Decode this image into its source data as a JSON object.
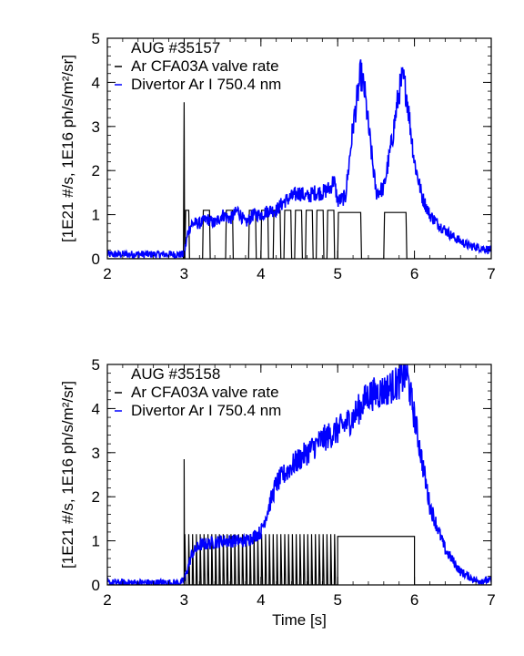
{
  "chart_data": [
    {
      "type": "line",
      "panel": "top",
      "title": "",
      "xlim": [
        2,
        7
      ],
      "ylim": [
        0,
        5
      ],
      "x_ticks": [
        2,
        3,
        4,
        5,
        6,
        7
      ],
      "y_ticks": [
        0,
        1,
        2,
        3,
        4,
        5
      ],
      "ylabel": "[1E21 #/s, 1E16 ph/s/m²/sr]",
      "xlabel": "",
      "legend": {
        "placement": "top-left",
        "header": "AUG #35157",
        "entries": [
          "Ar CFA03A valve rate",
          "Divertor Ar I 750.4 nm"
        ]
      },
      "series": [
        {
          "name": "Ar CFA03A valve rate",
          "color": "#000000",
          "x": [
            2.0,
            2.99,
            3.0,
            3.005,
            3.01,
            3.02,
            3.06,
            3.07,
            3.24,
            3.25,
            3.33,
            3.34,
            3.54,
            3.55,
            3.63,
            3.64,
            3.84,
            3.85,
            3.93,
            3.94,
            4.0,
            4.01,
            4.09,
            4.1,
            4.16,
            4.17,
            4.25,
            4.26,
            4.3,
            4.31,
            4.39,
            4.4,
            4.44,
            4.45,
            4.53,
            4.54,
            4.58,
            4.59,
            4.67,
            4.68,
            4.72,
            4.73,
            4.81,
            4.82,
            4.86,
            4.87,
            4.95,
            4.96,
            5.0,
            5.01,
            5.3,
            5.31,
            5.6,
            5.61,
            5.89,
            5.9,
            7.0
          ],
          "y": [
            0,
            0,
            3.55,
            1.05,
            0,
            1.1,
            1.1,
            0,
            0,
            1.1,
            1.1,
            0,
            0,
            1.1,
            1.1,
            0,
            0,
            1.1,
            1.1,
            0,
            0,
            1.1,
            1.1,
            0,
            0,
            1.1,
            1.1,
            0,
            0,
            1.1,
            1.1,
            0,
            0,
            1.1,
            1.1,
            0,
            0,
            1.1,
            1.1,
            0,
            0,
            1.1,
            1.1,
            0,
            0,
            1.1,
            1.1,
            0,
            0,
            1.05,
            1.05,
            0,
            0,
            1.05,
            1.05,
            0,
            0
          ]
        },
        {
          "name": "Divertor Ar I 750.4 nm",
          "color": "#0000ff",
          "x": [
            2.0,
            2.5,
            2.9,
            3.0,
            3.05,
            3.1,
            3.2,
            3.3,
            3.4,
            3.5,
            3.6,
            3.7,
            3.8,
            3.9,
            4.0,
            4.1,
            4.2,
            4.3,
            4.4,
            4.5,
            4.6,
            4.7,
            4.8,
            4.9,
            4.95,
            5.0,
            5.1,
            5.2,
            5.25,
            5.3,
            5.35,
            5.4,
            5.5,
            5.6,
            5.7,
            5.8,
            5.85,
            5.9,
            6.0,
            6.1,
            6.2,
            6.3,
            6.5,
            6.7,
            7.0
          ],
          "y": [
            0.1,
            0.1,
            0.1,
            0.1,
            0.6,
            0.8,
            0.8,
            0.9,
            0.8,
            1.0,
            0.9,
            1.1,
            0.8,
            1.0,
            1.0,
            1.1,
            1.1,
            1.3,
            1.4,
            1.5,
            1.4,
            1.5,
            1.5,
            1.6,
            1.8,
            1.3,
            1.4,
            3.0,
            3.6,
            4.2,
            3.8,
            3.0,
            1.5,
            1.6,
            2.6,
            3.8,
            4.1,
            3.7,
            2.2,
            1.4,
            1.0,
            0.8,
            0.5,
            0.3,
            0.2
          ]
        }
      ]
    },
    {
      "type": "line",
      "panel": "bottom",
      "title": "",
      "xlim": [
        2,
        7
      ],
      "ylim": [
        0,
        5
      ],
      "x_ticks": [
        2,
        3,
        4,
        5,
        6,
        7
      ],
      "y_ticks": [
        0,
        1,
        2,
        3,
        4,
        5
      ],
      "ylabel": "[1E21 #/s, 1E16 ph/s/m²/sr]",
      "xlabel": "Time [s]",
      "legend": {
        "placement": "top-left",
        "header": "AUG #35158",
        "entries": [
          "Ar CFA03A valve rate",
          "Divertor Ar I 750.4 nm"
        ]
      },
      "series": [
        {
          "name": "Ar CFA03A valve rate",
          "color": "#000000",
          "pulsed": {
            "start": 3.0,
            "end": 5.0,
            "period": 0.05,
            "high": 1.15,
            "initial_spike": 2.85
          },
          "steady": {
            "start": 5.0,
            "end": 6.0,
            "value": 1.1
          }
        },
        {
          "name": "Divertor Ar I 750.4 nm",
          "color": "#0000ff",
          "x": [
            2.0,
            2.5,
            2.95,
            3.0,
            3.1,
            3.2,
            3.5,
            3.8,
            4.0,
            4.2,
            4.4,
            4.6,
            4.8,
            5.0,
            5.2,
            5.4,
            5.6,
            5.8,
            5.9,
            6.0,
            6.1,
            6.2,
            6.4,
            6.6,
            6.8,
            7.0
          ],
          "y": [
            0.05,
            0.05,
            0.05,
            0.1,
            0.7,
            0.9,
            1.0,
            1.0,
            1.2,
            2.3,
            2.7,
            3.0,
            3.3,
            3.5,
            3.8,
            4.3,
            4.4,
            4.6,
            4.8,
            3.8,
            2.8,
            1.8,
            0.8,
            0.3,
            0.1,
            0.1
          ]
        }
      ]
    }
  ]
}
